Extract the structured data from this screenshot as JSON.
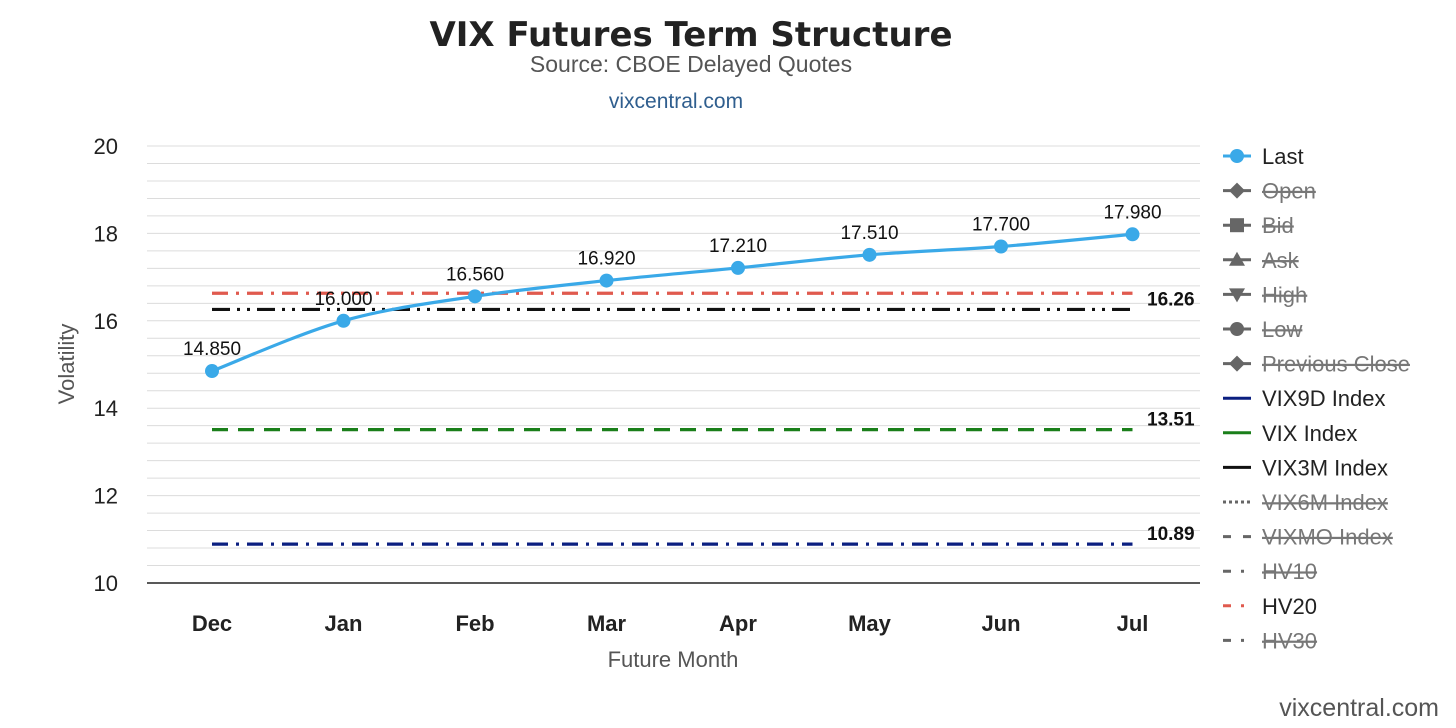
{
  "header": {
    "title": "VIX Futures Term Structure",
    "subtitle": "Source: CBOE Delayed Quotes",
    "link": "vixcentral.com"
  },
  "watermark": "vixcentral.com",
  "chart_data": {
    "type": "line",
    "title": "VIX Futures Term Structure",
    "subtitle": "Source: CBOE Delayed Quotes",
    "xlabel": "Future Month",
    "ylabel": "Volatility",
    "categories": [
      "Dec",
      "Jan",
      "Feb",
      "Mar",
      "Apr",
      "May",
      "Jun",
      "Jul"
    ],
    "ylim": [
      10,
      20
    ],
    "yticks": [
      10,
      12,
      14,
      16,
      18,
      20
    ],
    "grid": true,
    "legend_position": "right",
    "series": [
      {
        "name": "Last",
        "values": [
          14.85,
          16.0,
          16.56,
          16.92,
          17.21,
          17.51,
          17.7,
          17.98
        ],
        "labels": [
          "14.850",
          "16.000",
          "16.560",
          "16.920",
          "17.210",
          "17.510",
          "17.700",
          "17.980"
        ],
        "color": "#3aa9e8"
      }
    ],
    "reference_lines": [
      {
        "name": "VIX9D Index",
        "value": 10.89,
        "label": "10.89",
        "color": "#0b1f80",
        "style": "dash-dot"
      },
      {
        "name": "VIX Index",
        "value": 13.51,
        "label": "13.51",
        "color": "#1a7f1a",
        "style": "dash"
      },
      {
        "name": "VIX3M Index",
        "value": 16.26,
        "label": "16.26",
        "color": "#111111",
        "style": "dash-dot-dot"
      },
      {
        "name": "HV20",
        "value": 16.63,
        "label": "",
        "color": "#e05a4e",
        "style": "dash-dot"
      }
    ],
    "legend": [
      {
        "name": "Last",
        "symbol": "circle",
        "color": "#3aa9e8",
        "visible": true
      },
      {
        "name": "Open",
        "symbol": "diamond",
        "color": "#666666",
        "visible": false
      },
      {
        "name": "Bid",
        "symbol": "square",
        "color": "#666666",
        "visible": false
      },
      {
        "name": "Ask",
        "symbol": "triangle-up",
        "color": "#666666",
        "visible": false
      },
      {
        "name": "High",
        "symbol": "triangle-down",
        "color": "#666666",
        "visible": false
      },
      {
        "name": "Low",
        "symbol": "circle",
        "color": "#666666",
        "visible": false
      },
      {
        "name": "Previous Close",
        "symbol": "diamond",
        "color": "#666666",
        "visible": false
      },
      {
        "name": "VIX9D Index",
        "symbol": "line",
        "color": "#0b1f80",
        "visible": true
      },
      {
        "name": "VIX Index",
        "symbol": "line",
        "color": "#1a7f1a",
        "visible": true
      },
      {
        "name": "VIX3M Index",
        "symbol": "line",
        "color": "#111111",
        "visible": true
      },
      {
        "name": "VIX6M Index",
        "symbol": "dotted",
        "color": "#666666",
        "visible": false
      },
      {
        "name": "VIXMO Index",
        "symbol": "dash",
        "color": "#666666",
        "visible": false
      },
      {
        "name": "HV10",
        "symbol": "dashdot",
        "color": "#666666",
        "visible": false
      },
      {
        "name": "HV20",
        "symbol": "dashdot",
        "color": "#e05a4e",
        "visible": true
      },
      {
        "name": "HV30",
        "symbol": "dashdot",
        "color": "#666666",
        "visible": false
      }
    ]
  }
}
